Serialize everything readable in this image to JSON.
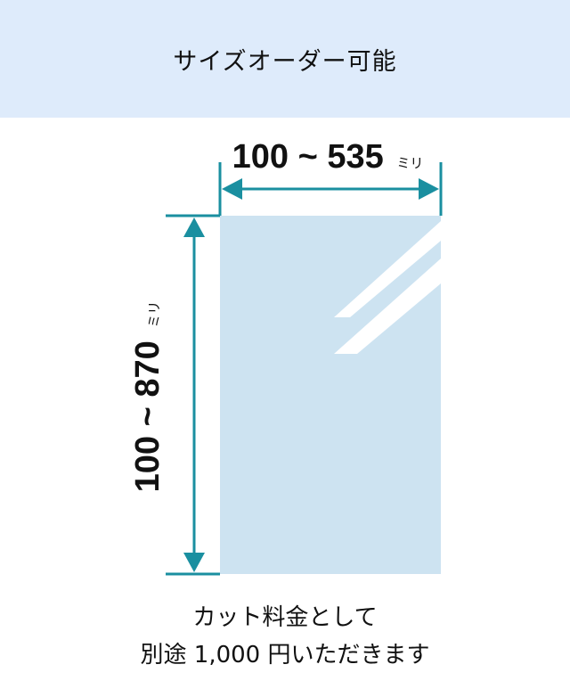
{
  "header": {
    "title": "サイズオーダー可能"
  },
  "width_dimension": {
    "range": "100 ~ 535",
    "unit": "ミリ"
  },
  "height_dimension": {
    "range": "100 ~ 870",
    "unit": "ミリ"
  },
  "note": {
    "line1": "カット料金として",
    "line2": "別途 1,000 円いただきます"
  },
  "colors": {
    "header_bg": "#deebfb",
    "accent": "#1a8fa0",
    "panel": "#cde3f1"
  }
}
